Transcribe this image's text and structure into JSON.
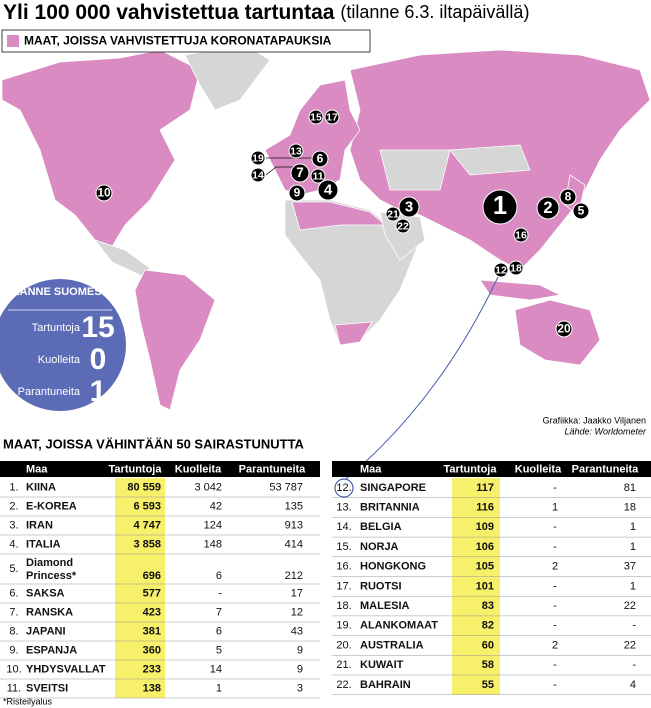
{
  "title": "Yli 100 000 vahvistettua tartuntaa",
  "subtitle": "(tilanne 6.3. iltapäivällä)",
  "legend": "MAAT, JOISSA VAHVISTETTUJA KORONATAPAUKSIA",
  "map_markers": [
    "1",
    "2",
    "3",
    "4",
    "5",
    "6",
    "7",
    "8",
    "9",
    "10",
    "11",
    "12",
    "13",
    "14",
    "15",
    "16",
    "17",
    "18",
    "19",
    "20",
    "21",
    "22"
  ],
  "finland": {
    "title": "TILANNE SUOMESSA",
    "rows": [
      {
        "label": "Tartuntoja",
        "value": "15"
      },
      {
        "label": "Kuolleita",
        "value": "0"
      },
      {
        "label": "Parantuneita",
        "value": "1"
      }
    ]
  },
  "credits": {
    "graphics": "Grafiikka: Jaakko Viljanen",
    "source": "Lähde: Worldometer"
  },
  "table_title": "MAAT, JOISSA VÄHINTÄÄN 50 SAIRASTUNUTTA",
  "tables": [
    {
      "header": [
        "Maa",
        "Tartuntoja",
        "Kuolleita",
        "Parantuneita"
      ],
      "rows": [
        [
          "1.",
          "KIINA",
          "80 559",
          "3 042",
          "53 787"
        ],
        [
          "2.",
          "E-KOREA",
          "6 593",
          "42",
          "135"
        ],
        [
          "3.",
          "IRAN",
          "4 747",
          "124",
          "913"
        ],
        [
          "4.",
          "ITALIA",
          "3 858",
          "148",
          "414"
        ],
        [
          "5.",
          "Diamond Princess*",
          "696",
          "6",
          "212"
        ],
        [
          "6.",
          "SAKSA",
          "577",
          "-",
          "17"
        ],
        [
          "7.",
          "RANSKA",
          "423",
          "7",
          "12"
        ],
        [
          "8.",
          "JAPANI",
          "381",
          "6",
          "43"
        ],
        [
          "9.",
          "ESPANJA",
          "360",
          "5",
          "9"
        ],
        [
          "10.",
          "YHDYSVALLAT",
          "233",
          "14",
          "9"
        ],
        [
          "11.",
          "SVEITSI",
          "138",
          "1",
          "3"
        ]
      ]
    },
    {
      "header": [
        "Maa",
        "Tartuntoja",
        "Kuolleita",
        "Parantuneita"
      ],
      "rows": [
        [
          "12.",
          "SINGAPORE",
          "117",
          "-",
          "81"
        ],
        [
          "13.",
          "BRITANNIA",
          "116",
          "1",
          "18"
        ],
        [
          "14.",
          "BELGIA",
          "109",
          "-",
          "1"
        ],
        [
          "15.",
          "NORJA",
          "106",
          "-",
          "1"
        ],
        [
          "16.",
          "HONGKONG",
          "105",
          "2",
          "37"
        ],
        [
          "17.",
          "RUOTSI",
          "101",
          "-",
          "1"
        ],
        [
          "18.",
          "MALESIA",
          "83",
          "-",
          "22"
        ],
        [
          "19.",
          "ALANKOMAAT",
          "82",
          "-",
          "-"
        ],
        [
          "20.",
          "AUSTRALIA",
          "60",
          "2",
          "22"
        ],
        [
          "21.",
          "KUWAIT",
          "58",
          "-",
          "-"
        ],
        [
          "22.",
          "BAHRAIN",
          "55",
          "-",
          "4"
        ]
      ]
    }
  ],
  "footnote": "*Risteilyalus"
}
